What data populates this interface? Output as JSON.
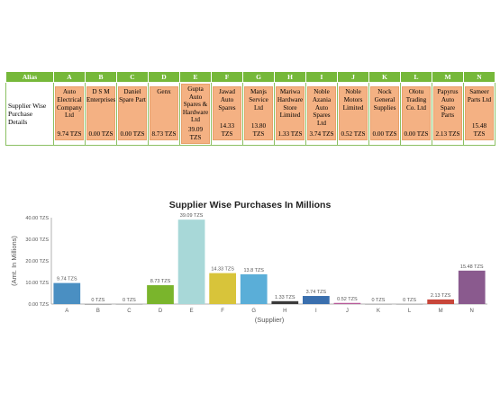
{
  "table": {
    "alias_header": "Alias",
    "row_label": "Supplier Wise Purchase Details",
    "columns": [
      {
        "alias": "A",
        "name": "Auto Electrical Company Ltd",
        "value": "9.74 TZS"
      },
      {
        "alias": "B",
        "name": "D S M Enterprises",
        "value": "0.00 TZS"
      },
      {
        "alias": "C",
        "name": "Daniel Spare Part",
        "value": "0.00 TZS"
      },
      {
        "alias": "D",
        "name": "Genx",
        "value": "8.73 TZS"
      },
      {
        "alias": "E",
        "name": "Gupta Auto Spares & Hardware Ltd",
        "value": "39.09 TZS"
      },
      {
        "alias": "F",
        "name": "Jawad Auto Spares",
        "value": "14.33 TZS"
      },
      {
        "alias": "G",
        "name": "Manjs Service Ltd",
        "value": "13.80 TZS"
      },
      {
        "alias": "H",
        "name": "Mariwa Hardware Store Limited",
        "value": "1.33 TZS"
      },
      {
        "alias": "I",
        "name": "Noble Azania Auto Spares Ltd",
        "value": "3.74 TZS"
      },
      {
        "alias": "J",
        "name": "Noble Motors Limited",
        "value": "0.52 TZS"
      },
      {
        "alias": "K",
        "name": "Nock General Supplies",
        "value": "0.00 TZS"
      },
      {
        "alias": "L",
        "name": "Olotu Trading Co. Ltd",
        "value": "0.00 TZS"
      },
      {
        "alias": "M",
        "name": "Papyrus Auto Spare Parts",
        "value": "2.13 TZS"
      },
      {
        "alias": "N",
        "name": "Sameer Parts Ltd",
        "value": "15.48 TZS"
      }
    ]
  },
  "chart_data": {
    "type": "bar",
    "title": "Supplier Wise Purchases In Millions",
    "xlabel": "(Supplier)",
    "ylabel": "(Amt. In Millions)",
    "ylim": [
      0,
      40
    ],
    "y_ticks": [
      "0.00 TZS",
      "10.00 TZS",
      "20.00 TZS",
      "30.00 TZS",
      "40.00 TZS"
    ],
    "y_tick_values": [
      0,
      10,
      20,
      30,
      40
    ],
    "categories": [
      "A",
      "B",
      "C",
      "D",
      "E",
      "F",
      "G",
      "H",
      "I",
      "J",
      "K",
      "L",
      "M",
      "N"
    ],
    "values": [
      9.74,
      0,
      0,
      8.73,
      39.09,
      14.33,
      13.8,
      1.33,
      3.74,
      0.52,
      0,
      0,
      2.13,
      15.48
    ],
    "data_labels": [
      "9.74 TZS",
      "0 TZS",
      "0 TZS",
      "8.73 TZS",
      "39.09 TZS",
      "14.33 TZS",
      "13.8 TZS",
      "1.33 TZS",
      "3.74 TZS",
      "0.52 TZS",
      "0 TZS",
      "0 TZS",
      "2.13 TZS",
      "15.48 TZS"
    ],
    "colors": [
      "#4a8fc2",
      "#7a7a7a",
      "#9a9a9a",
      "#7ab52c",
      "#a8d8d8",
      "#d8c43a",
      "#5aaed8",
      "#3a3a3a",
      "#3a6fae",
      "#b85a9a",
      "#9a9a9a",
      "#9a9a9a",
      "#c8463a",
      "#8a5a8e"
    ],
    "grid": false,
    "legend": "none"
  }
}
